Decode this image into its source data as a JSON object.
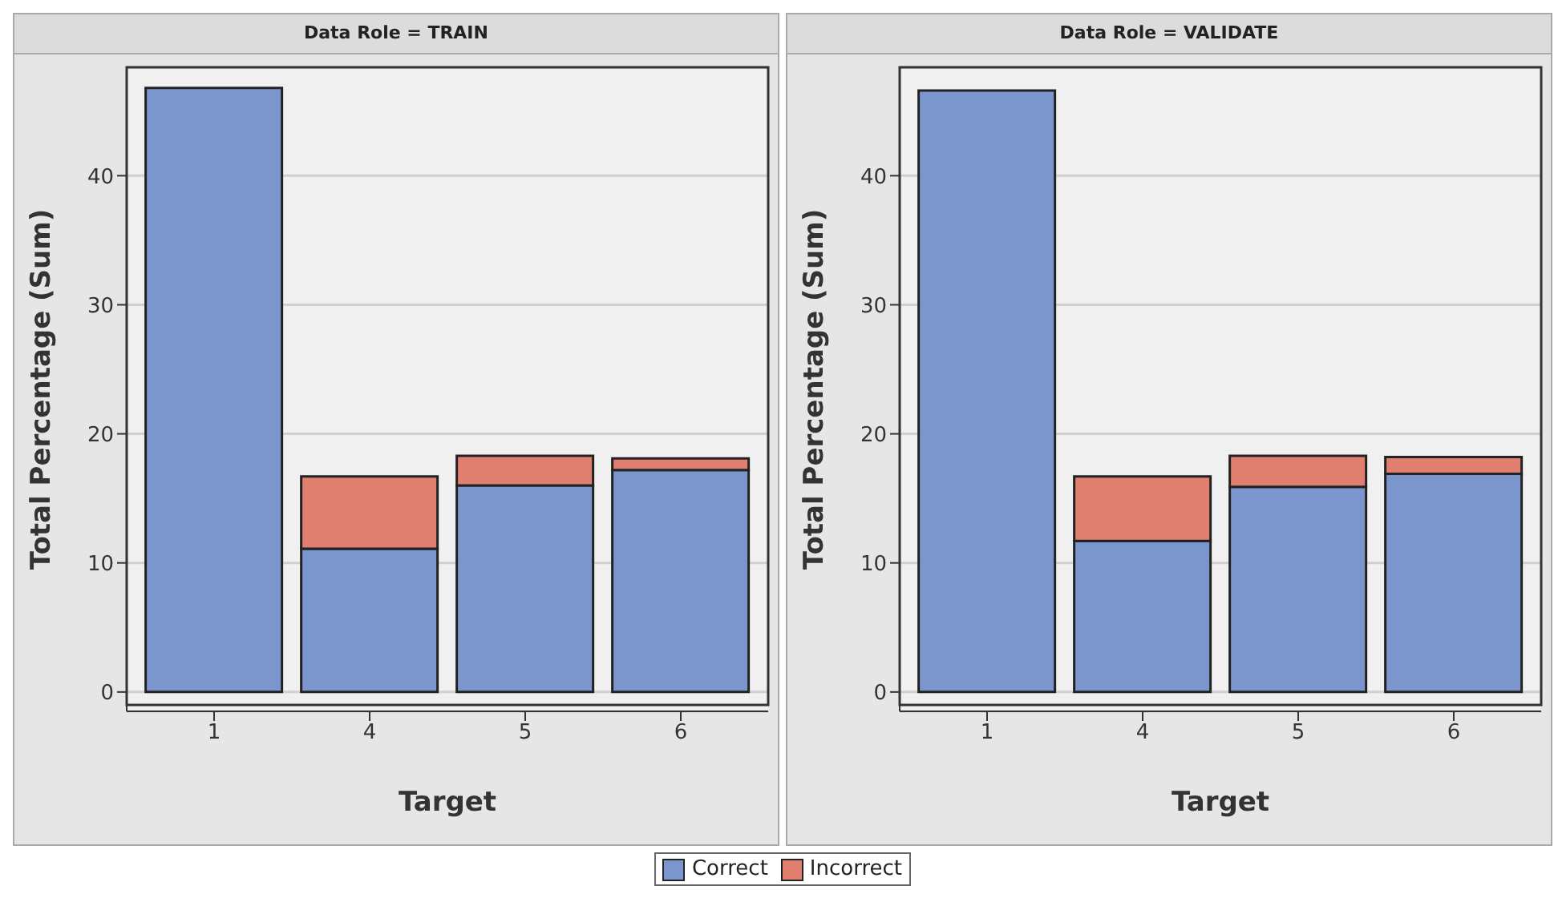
{
  "chart_data": [
    {
      "type": "bar",
      "title": "Data Role = TRAIN",
      "xlabel": "Target",
      "ylabel": "Total Percentage (Sum)",
      "categories": [
        "1",
        "4",
        "5",
        "6"
      ],
      "stacked": true,
      "ylim": [
        -1.5,
        48.4
      ],
      "yticks": [
        0,
        10,
        20,
        30,
        40
      ],
      "grid": "y",
      "legend": "bottom",
      "series": [
        {
          "name": "Correct",
          "color": "#7b96cd",
          "values": [
            46.8,
            11.1,
            16.0,
            17.2
          ]
        },
        {
          "name": "Incorrect",
          "color": "#e07f6f",
          "values": [
            0,
            5.6,
            2.3,
            0.9
          ]
        }
      ]
    },
    {
      "type": "bar",
      "title": "Data Role = VALIDATE",
      "xlabel": "Target",
      "ylabel": "Total Percentage (Sum)",
      "categories": [
        "1",
        "4",
        "5",
        "6"
      ],
      "stacked": true,
      "ylim": [
        -1.5,
        48.4
      ],
      "yticks": [
        0,
        10,
        20,
        30,
        40
      ],
      "grid": "y",
      "series": [
        {
          "color": "#7b96cd",
          "values": [
            46.6,
            11.7,
            15.9,
            16.9
          ]
        },
        {
          "color": "#e07f6f",
          "values": [
            0,
            5.0,
            2.4,
            1.3
          ]
        }
      ]
    }
  ]
}
